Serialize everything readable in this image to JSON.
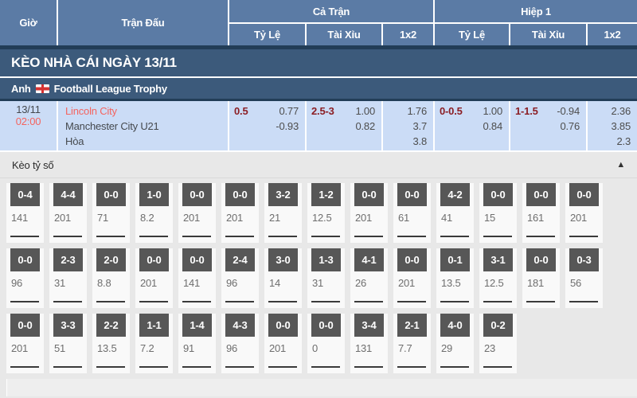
{
  "header": {
    "col_time": "Giờ",
    "col_match": "Trận Đấu",
    "group_full": "Cả Trận",
    "group_half": "Hiệp 1",
    "sub_handicap": "Tỷ Lệ",
    "sub_overunder": "Tài Xỉu",
    "sub_1x2": "1x2"
  },
  "section_title": "KÈO NHÀ CÁI NGÀY 13/11",
  "league": {
    "country": "Anh",
    "flag_icon": "england-flag",
    "name": "Football League Trophy"
  },
  "match": {
    "date": "13/11",
    "time": "02:00",
    "home_team": "Lincoln City",
    "away_team": "Manchester City U21",
    "draw_label": "Hòa",
    "full": {
      "handicap": {
        "line": "0.5",
        "odds": [
          "0.77",
          "-0.93"
        ]
      },
      "overunder": {
        "line": "2.5-3",
        "odds": [
          "1.00",
          "0.82"
        ]
      },
      "x12": [
        "1.76",
        "3.7",
        "3.8"
      ]
    },
    "half": {
      "handicap": {
        "line": "0-0.5",
        "odds": [
          "1.00",
          "0.84"
        ]
      },
      "overunder": {
        "line": "1-1.5",
        "odds": [
          "-0.94",
          "0.76"
        ]
      },
      "x12": [
        "2.36",
        "3.85",
        "2.3"
      ]
    }
  },
  "score_section": {
    "title": "Kèo tỷ số",
    "collapse_icon": "triangle-up",
    "rows": [
      [
        {
          "score": "0-4",
          "odds": "141"
        },
        {
          "score": "4-4",
          "odds": "201"
        },
        {
          "score": "0-0",
          "odds": "71"
        },
        {
          "score": "1-0",
          "odds": "8.2"
        },
        {
          "score": "0-0",
          "odds": "201"
        },
        {
          "score": "0-0",
          "odds": "201"
        },
        {
          "score": "3-2",
          "odds": "21"
        },
        {
          "score": "1-2",
          "odds": "12.5"
        },
        {
          "score": "0-0",
          "odds": "201"
        },
        {
          "score": "0-0",
          "odds": "61"
        },
        {
          "score": "4-2",
          "odds": "41"
        },
        {
          "score": "0-0",
          "odds": "15"
        },
        {
          "score": "0-0",
          "odds": "161"
        },
        {
          "score": "0-0",
          "odds": "201"
        }
      ],
      [
        {
          "score": "0-0",
          "odds": "96"
        },
        {
          "score": "2-3",
          "odds": "31"
        },
        {
          "score": "2-0",
          "odds": "8.8"
        },
        {
          "score": "0-0",
          "odds": "201"
        },
        {
          "score": "0-0",
          "odds": "141"
        },
        {
          "score": "2-4",
          "odds": "96"
        },
        {
          "score": "3-0",
          "odds": "14"
        },
        {
          "score": "1-3",
          "odds": "31"
        },
        {
          "score": "4-1",
          "odds": "26"
        },
        {
          "score": "0-0",
          "odds": "201"
        },
        {
          "score": "0-1",
          "odds": "13.5"
        },
        {
          "score": "3-1",
          "odds": "12.5"
        },
        {
          "score": "0-0",
          "odds": "181"
        },
        {
          "score": "0-3",
          "odds": "56"
        }
      ],
      [
        {
          "score": "0-0",
          "odds": "201"
        },
        {
          "score": "3-3",
          "odds": "51"
        },
        {
          "score": "2-2",
          "odds": "13.5"
        },
        {
          "score": "1-1",
          "odds": "7.2"
        },
        {
          "score": "1-4",
          "odds": "91"
        },
        {
          "score": "4-3",
          "odds": "96"
        },
        {
          "score": "0-0",
          "odds": "201"
        },
        {
          "score": "0-0",
          "odds": "0"
        },
        {
          "score": "3-4",
          "odds": "131"
        },
        {
          "score": "2-1",
          "odds": "7.7"
        },
        {
          "score": "4-0",
          "odds": "29"
        },
        {
          "score": "0-2",
          "odds": "23"
        }
      ]
    ]
  },
  "colors": {
    "header_blue": "#5b7ba5",
    "navy_bar": "#3c5a7b",
    "match_row_bg": "#cbdcf6",
    "accent_red": "#f4645f",
    "handicap_maroon": "#8b1e24",
    "tile_dark": "#575757",
    "page_gray": "#e8e8e8"
  }
}
